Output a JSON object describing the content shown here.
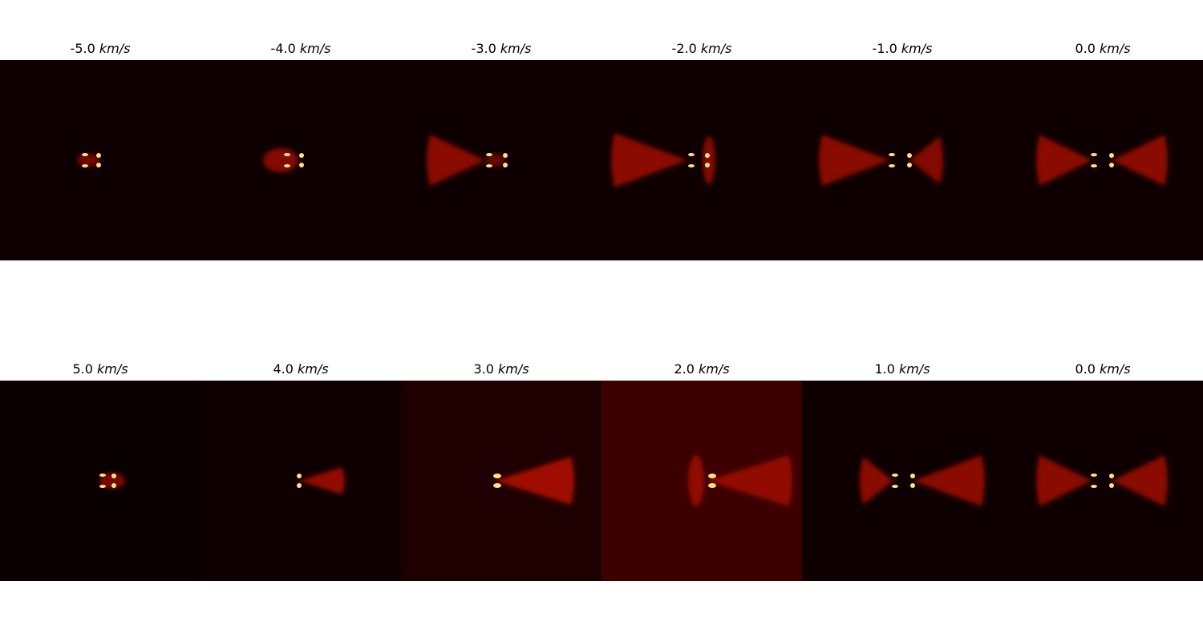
{
  "unit": "km/s",
  "rows": [
    {
      "panels": [
        {
          "velocity": "-5.0",
          "background": "#0e0000"
        },
        {
          "velocity": "-4.0",
          "background": "#0e0000"
        },
        {
          "velocity": "-3.0",
          "background": "#0e0000"
        },
        {
          "velocity": "-2.0",
          "background": "#0e0000"
        },
        {
          "velocity": "-1.0",
          "background": "#0e0000"
        },
        {
          "velocity": "0.0",
          "background": "#0e0000"
        }
      ]
    },
    {
      "panels": [
        {
          "velocity": "5.0",
          "background": "#0a0000"
        },
        {
          "velocity": "4.0",
          "background": "#0e0000"
        },
        {
          "velocity": "3.0",
          "background": "#1e0000"
        },
        {
          "velocity": "2.0",
          "background": "#3c0000"
        },
        {
          "velocity": "1.0",
          "background": "#0e0000"
        },
        {
          "velocity": "0.0",
          "background": "#0e0000"
        }
      ]
    }
  ],
  "colors": {
    "glow": "#a01000",
    "bright": "#ffe27a",
    "mid": "#e02800"
  }
}
